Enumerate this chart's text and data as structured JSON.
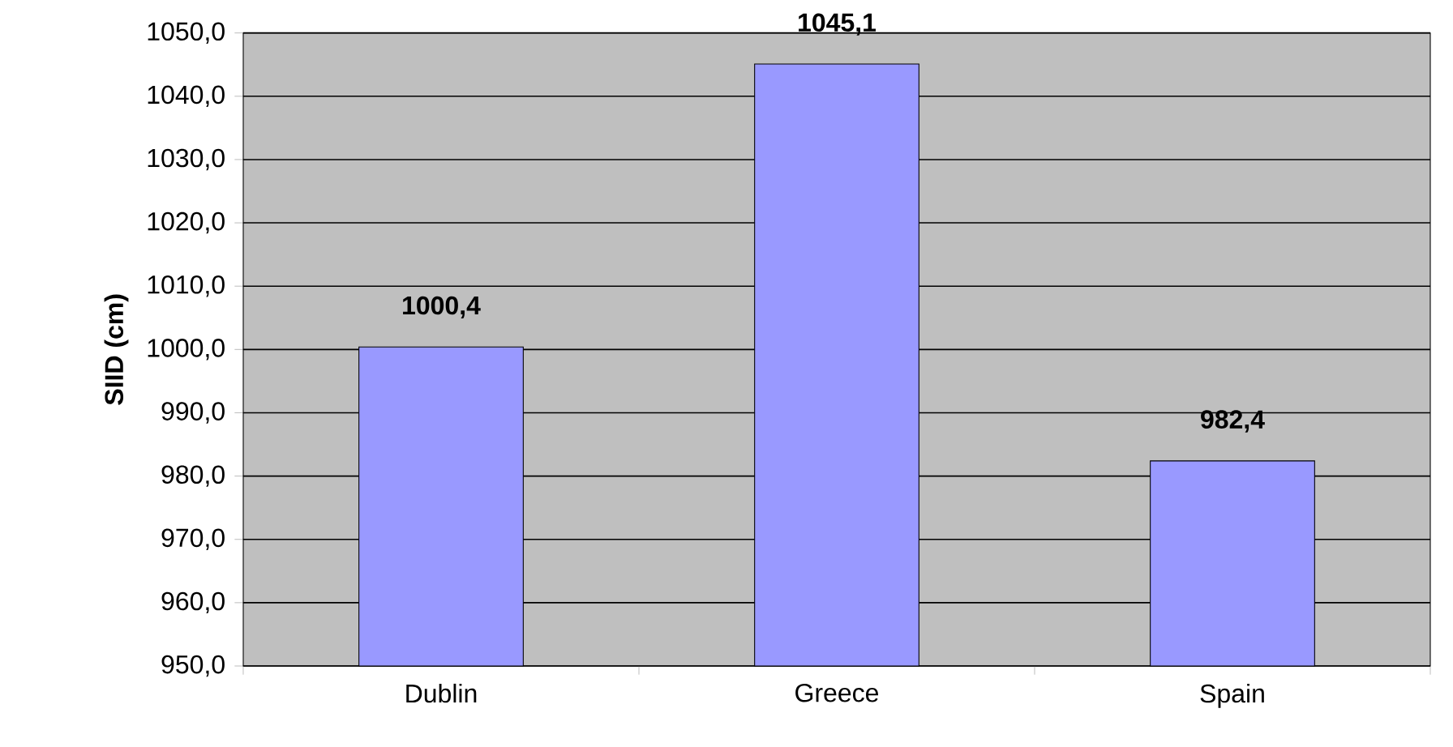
{
  "chart_data": {
    "type": "bar",
    "ylabel": "SIID (cm)",
    "categories": [
      "Dublin",
      "Greece",
      "Spain"
    ],
    "values": [
      1000.4,
      1045.1,
      982.4
    ],
    "value_labels": [
      "1000,4",
      "1045,1",
      "982,4"
    ],
    "color": "#9999ff",
    "ylim": [
      950,
      1050
    ],
    "yticks": [
      {
        "value": 950,
        "label": "950,0"
      },
      {
        "value": 960,
        "label": "960,0"
      },
      {
        "value": 970,
        "label": "970,0"
      },
      {
        "value": 980,
        "label": "980,0"
      },
      {
        "value": 990,
        "label": "990,0"
      },
      {
        "value": 1000,
        "label": "1000,0"
      },
      {
        "value": 1010,
        "label": "1010,0"
      },
      {
        "value": 1020,
        "label": "1020,0"
      },
      {
        "value": 1030,
        "label": "1030,0"
      },
      {
        "value": 1040,
        "label": "1040,0"
      },
      {
        "value": 1050,
        "label": "1050,0"
      }
    ],
    "grid": "y"
  }
}
